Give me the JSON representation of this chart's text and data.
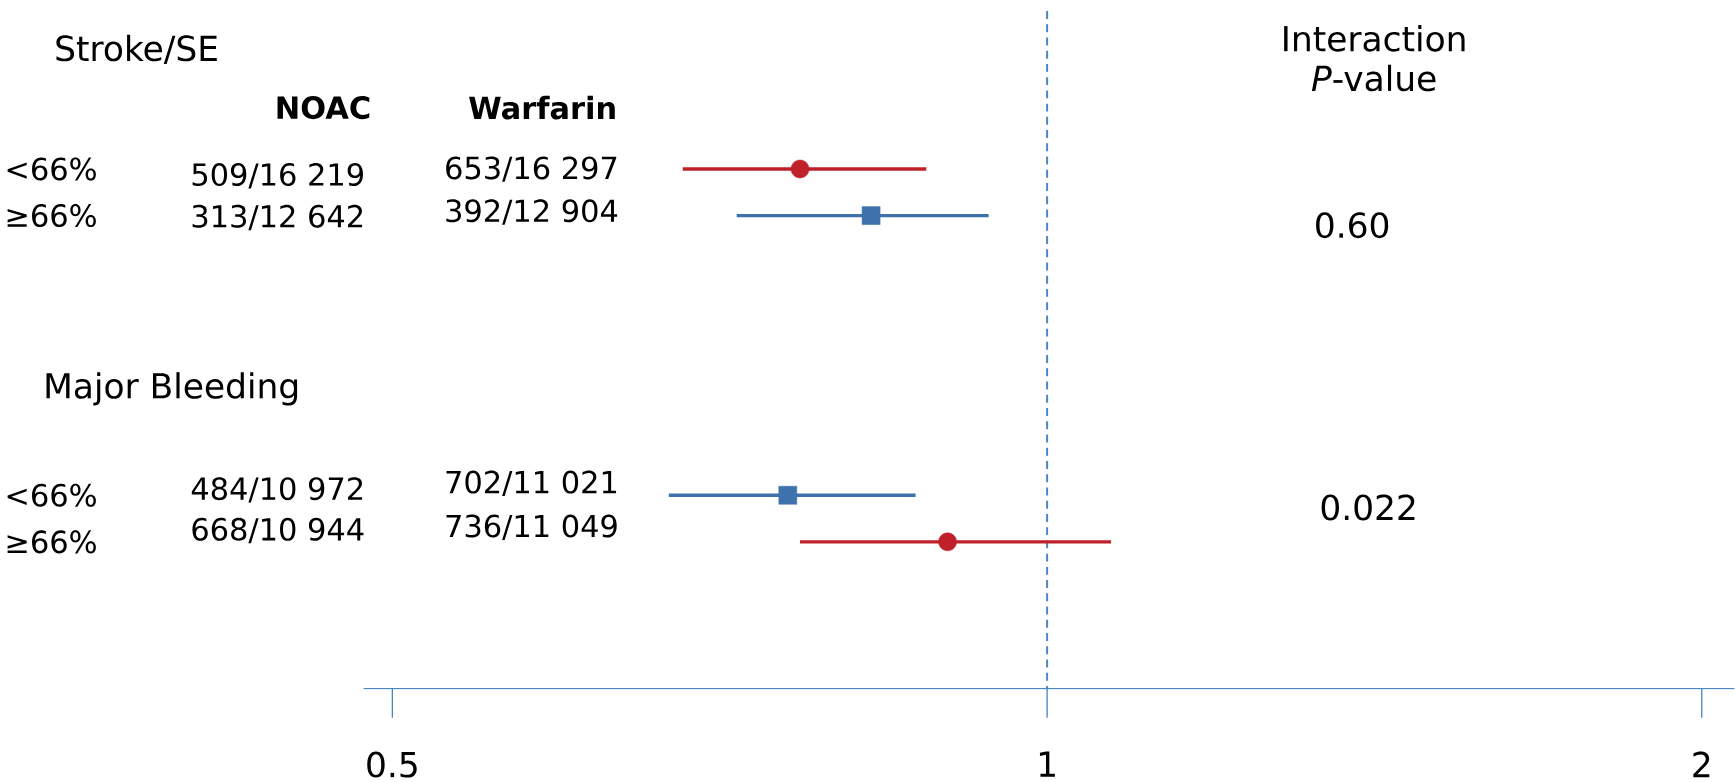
{
  "chart_data": {
    "type": "scatter",
    "orientation": "horizontal",
    "log": "x",
    "categories": [
      "<66%",
      "≥66%",
      null,
      null,
      null,
      null,
      null,
      "<66%",
      "≥66%"
    ],
    "xlim": [
      0.485,
      2.07
    ],
    "xticks": [
      0.5,
      1,
      2
    ],
    "series": [
      {
        "color": "#c0202a",
        "marker": "circle",
        "values": [
          0.77,
          null,
          null,
          null,
          null,
          null,
          null,
          null,
          0.9
        ],
        "errors": [
          [
            0.68,
            0.88
          ],
          null,
          null,
          null,
          null,
          null,
          null,
          null,
          [
            0.77,
            1.07
          ]
        ]
      },
      {
        "color": "#3f72ad",
        "marker": "square",
        "values": [
          null,
          0.83,
          null,
          null,
          null,
          null,
          null,
          0.76,
          null
        ],
        "errors": [
          null,
          [
            0.72,
            0.94
          ],
          null,
          null,
          null,
          null,
          null,
          [
            0.67,
            0.87
          ],
          null
        ]
      }
    ],
    "ref_lines": [
      {
        "axis": "x",
        "value": 1,
        "color": "#4a86c5",
        "line_style": "dashed"
      }
    ],
    "annotations": [
      "Stroke/SE",
      "NOAC",
      "Warfarin",
      "509/16 219",
      "653/16 297",
      "313/12 642",
      "392/12 904",
      "Major Bleeding",
      "484/10 972",
      "702/11 021",
      "668/10 944",
      "736/11 049",
      "Interaction *P*-value",
      "0.60",
      "0.022"
    ]
  }
}
